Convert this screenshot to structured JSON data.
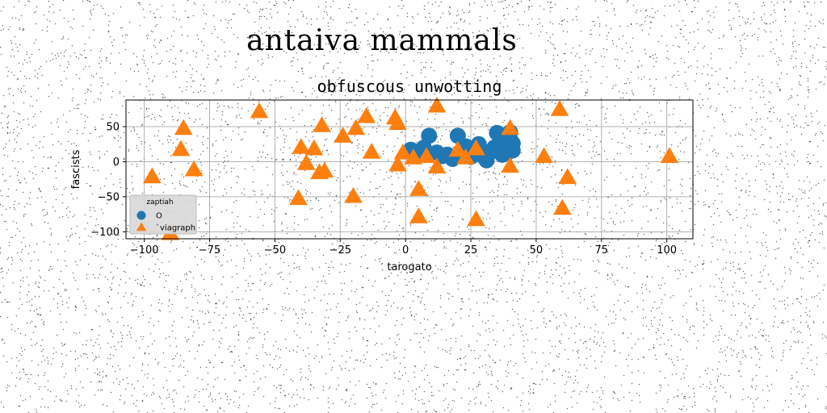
{
  "figure": {
    "suptitle": "antaiva mammals"
  },
  "chart_data": {
    "type": "scatter",
    "title": "obfuscous unwotting",
    "xlabel": "tarogato",
    "ylabel": "fascists",
    "xlim": [
      -107,
      110
    ],
    "ylim": [
      -110,
      88
    ],
    "xticks": [
      -100,
      -75,
      -50,
      -25,
      0,
      25,
      50,
      75,
      100
    ],
    "yticks": [
      -100,
      -50,
      0,
      50
    ],
    "grid": true,
    "legend": {
      "title": "zaptiah",
      "position": "lower-left"
    },
    "series": [
      {
        "name": "O",
        "marker": "circle",
        "color": "#1f77b4",
        "points": [
          [
            2,
            17
          ],
          [
            5,
            14
          ],
          [
            7,
            20
          ],
          [
            9,
            37
          ],
          [
            12,
            13
          ],
          [
            14,
            8
          ],
          [
            16,
            10
          ],
          [
            18,
            4
          ],
          [
            20,
            37
          ],
          [
            21,
            10
          ],
          [
            23,
            22
          ],
          [
            25,
            7
          ],
          [
            27,
            15
          ],
          [
            28,
            25
          ],
          [
            30,
            7
          ],
          [
            31,
            2
          ],
          [
            33,
            15
          ],
          [
            34,
            20
          ],
          [
            35,
            41
          ],
          [
            36,
            27
          ],
          [
            37,
            10
          ],
          [
            38,
            24
          ],
          [
            39,
            13
          ],
          [
            40,
            32
          ],
          [
            40,
            42
          ],
          [
            41,
            26
          ],
          [
            41,
            16
          ]
        ]
      },
      {
        "name": "`viagraph",
        "marker": "triangle",
        "color": "#ff7f0e",
        "points": [
          [
            -97,
            -22
          ],
          [
            -85,
            47
          ],
          [
            -86,
            17
          ],
          [
            -81,
            -12
          ],
          [
            -90,
            -103
          ],
          [
            -56,
            71
          ],
          [
            -41,
            -53
          ],
          [
            -40,
            20
          ],
          [
            -38,
            -3
          ],
          [
            -35,
            18
          ],
          [
            -33,
            -16
          ],
          [
            -32,
            51
          ],
          [
            -31,
            -14
          ],
          [
            -24,
            36
          ],
          [
            -20,
            -50
          ],
          [
            -19,
            47
          ],
          [
            -15,
            64
          ],
          [
            -13,
            13
          ],
          [
            -4,
            62
          ],
          [
            -3,
            54
          ],
          [
            -3,
            -5
          ],
          [
            -1,
            12
          ],
          [
            3,
            5
          ],
          [
            5,
            -79
          ],
          [
            5,
            -40
          ],
          [
            8,
            7
          ],
          [
            12,
            -8
          ],
          [
            12,
            79
          ],
          [
            20,
            16
          ],
          [
            23,
            5
          ],
          [
            27,
            -83
          ],
          [
            27,
            18
          ],
          [
            40,
            47
          ],
          [
            40,
            -7
          ],
          [
            53,
            7
          ],
          [
            59,
            74
          ],
          [
            60,
            -67
          ],
          [
            62,
            -23
          ],
          [
            101,
            7
          ]
        ]
      }
    ]
  }
}
